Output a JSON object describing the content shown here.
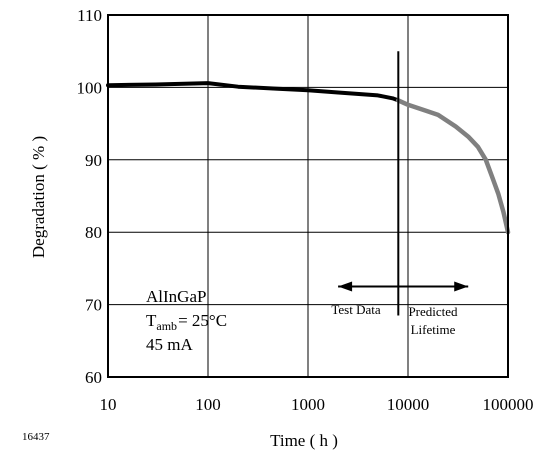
{
  "figure_id": "16437",
  "chart_data": {
    "type": "line",
    "title": "",
    "xlabel": "Time ( h )",
    "ylabel": "Degradation ( % )",
    "x_scale": "log",
    "xlim": [
      10,
      100000
    ],
    "ylim": [
      60,
      110
    ],
    "x_ticks": [
      10,
      100,
      1000,
      10000,
      100000
    ],
    "x_tick_labels": [
      "10",
      "100",
      "1000",
      "10000",
      "100000"
    ],
    "y_ticks": [
      60,
      70,
      80,
      90,
      100,
      110
    ],
    "y_tick_labels": [
      "60",
      "70",
      "80",
      "90",
      "100",
      "110"
    ],
    "grid": true,
    "legend": "none",
    "series": [
      {
        "color": "#000000",
        "style": "solid-thick",
        "x": [
          10,
          30,
          100,
          200,
          500,
          1000,
          2000,
          5000,
          7000,
          8000
        ],
        "y": [
          100.3,
          100.4,
          100.6,
          100.1,
          99.8,
          99.6,
          99.3,
          98.9,
          98.5,
          98.2
        ]
      },
      {
        "color": "#808080",
        "style": "solid-thick",
        "x": [
          8000,
          10000,
          15000,
          20000,
          30000,
          40000,
          50000,
          60000,
          70000,
          80000,
          90000,
          100000
        ],
        "y": [
          98.2,
          97.6,
          96.8,
          96.2,
          94.6,
          93.2,
          91.8,
          90.0,
          87.5,
          85.3,
          82.8,
          80.0
        ]
      }
    ],
    "annotations": {
      "material": "AlInGaP",
      "temp_main": "T",
      "temp_sub": "amb",
      "temp_value": "= 25°C",
      "current": "45 mA",
      "test_data_label": "Test Data",
      "predicted_line1": "Predicted",
      "predicted_line2": "Lifetime",
      "divider_x": 8000,
      "test_data_arrow_from_x": 8000,
      "test_data_arrow_to_x": 2000,
      "predicted_arrow_from_x": 8000,
      "predicted_arrow_to_x": 40000,
      "arrow_y": 72.5
    }
  }
}
